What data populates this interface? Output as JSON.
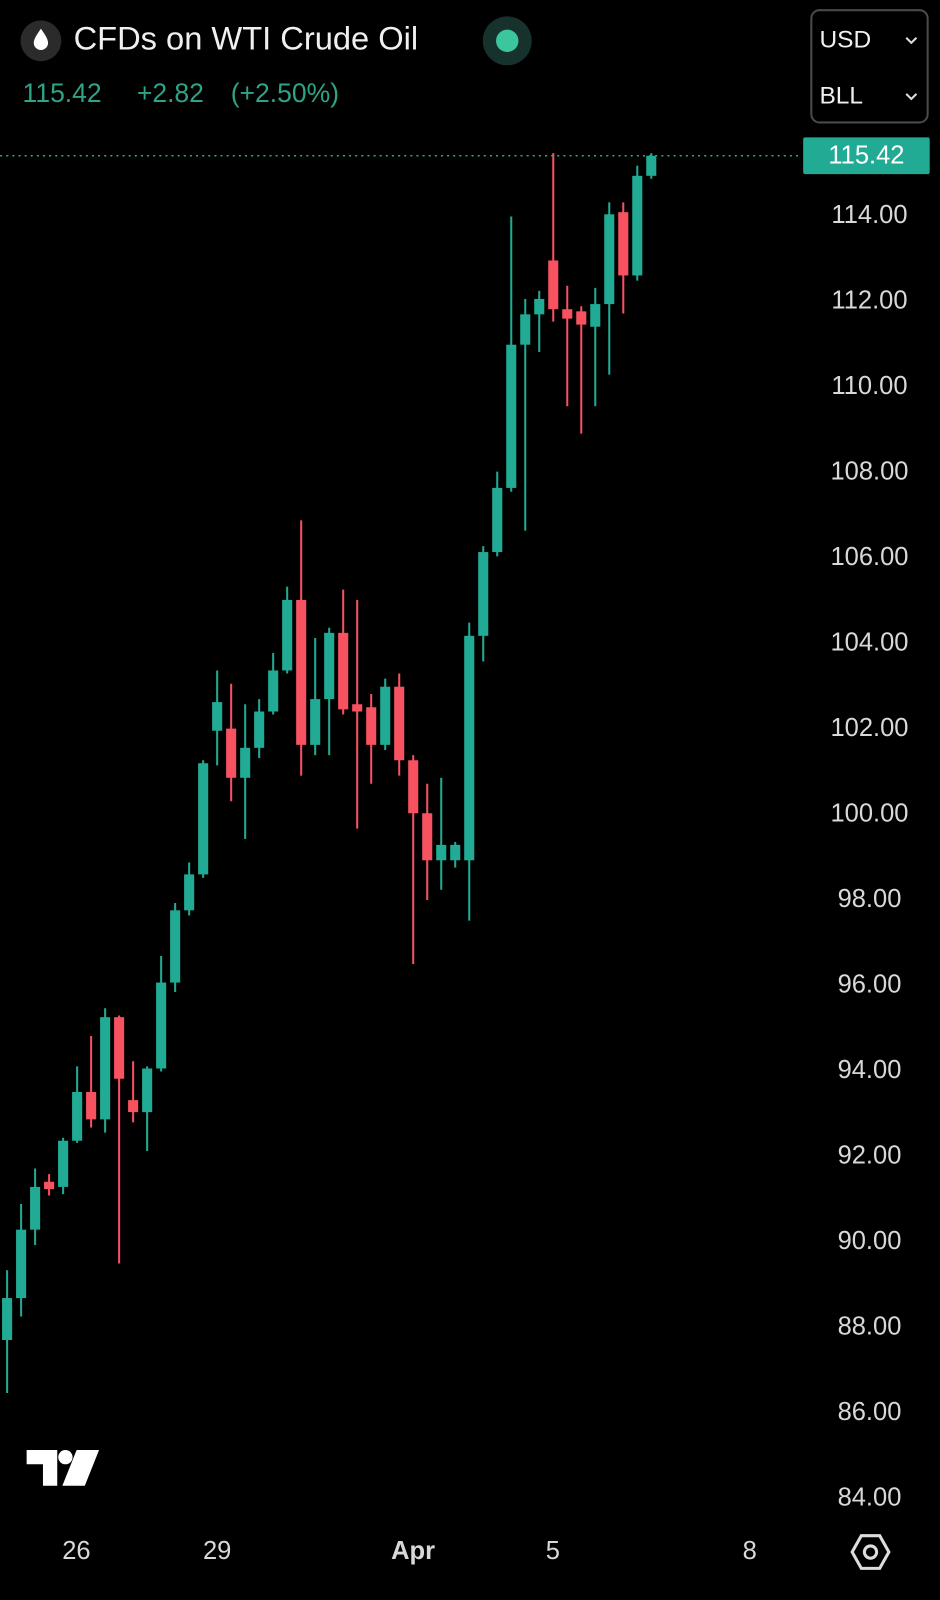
{
  "header": {
    "title": "CFDs on WTI Crude Oil",
    "change": "+2.82",
    "change_pct": "(+2.50%)",
    "currency": "USD",
    "unit": "BLL"
  },
  "chart_data": {
    "type": "candlestick",
    "open": [
      87.72,
      88.7,
      90.3,
      91.42,
      91.3,
      92.38,
      93.52,
      92.88,
      95.27,
      93.33,
      93.05,
      94.07,
      96.08,
      97.77,
      98.61,
      101.97,
      102.02,
      100.87,
      101.57,
      102.42,
      103.38,
      105.03,
      101.64,
      102.71,
      104.26,
      102.59,
      102.52,
      101.64,
      103.0,
      101.28,
      100.04,
      98.94,
      98.94,
      98.94,
      104.19,
      106.15,
      107.65,
      111.0,
      111.71,
      112.97,
      111.83,
      111.78,
      111.42,
      111.95,
      114.1,
      112.62,
      114.95
    ],
    "high": [
      89.35,
      90.9,
      91.73,
      91.6,
      92.45,
      94.12,
      94.83,
      95.48,
      95.31,
      94.24,
      94.12,
      96.7,
      97.94,
      98.89,
      101.28,
      103.38,
      103.07,
      102.59,
      102.71,
      103.79,
      105.34,
      106.89,
      104.14,
      104.38,
      105.27,
      105.03,
      102.83,
      103.19,
      103.31,
      101.4,
      100.73,
      100.87,
      99.37,
      104.5,
      106.29,
      108.03,
      114.0,
      112.07,
      112.26,
      115.48,
      112.38,
      111.9,
      112.33,
      114.33,
      114.33,
      115.19,
      115.48
    ],
    "low": [
      86.48,
      88.27,
      89.94,
      91.1,
      91.13,
      92.33,
      92.69,
      92.57,
      89.51,
      92.81,
      92.14,
      94.0,
      95.86,
      97.65,
      98.53,
      101.16,
      100.32,
      99.44,
      101.33,
      102.35,
      103.31,
      100.92,
      101.4,
      101.4,
      102.35,
      99.68,
      100.73,
      101.52,
      100.92,
      96.51,
      98.01,
      98.25,
      98.77,
      97.53,
      103.59,
      106.05,
      107.56,
      106.65,
      110.83,
      111.54,
      109.56,
      108.92,
      109.56,
      110.3,
      111.73,
      112.5,
      114.88
    ],
    "close": [
      88.7,
      90.3,
      91.3,
      91.25,
      92.38,
      93.52,
      92.88,
      95.27,
      93.83,
      93.05,
      94.07,
      96.08,
      97.77,
      98.61,
      101.21,
      102.64,
      100.87,
      101.57,
      102.42,
      103.38,
      105.03,
      101.64,
      102.71,
      104.26,
      102.47,
      102.42,
      101.64,
      103.0,
      101.28,
      100.04,
      98.94,
      99.3,
      99.3,
      104.19,
      106.15,
      107.65,
      111.0,
      111.71,
      112.07,
      111.83,
      111.61,
      111.47,
      111.95,
      114.05,
      112.62,
      114.95,
      115.42
    ],
    "up_color": "#22ab94",
    "down_color": "#f7525f",
    "last_price": 115.42,
    "xlim": [
      -0.5,
      56.7
    ],
    "xticks": [
      {
        "value": 4.95,
        "label": "26"
      },
      {
        "value": 15.0,
        "label": "29"
      },
      {
        "value": 28.99,
        "label": "Apr"
      },
      {
        "value": 38.97,
        "label": "5"
      },
      {
        "value": 53.03,
        "label": "8"
      }
    ],
    "ylim": [
      83.38,
      115.96
    ],
    "yticks": [
      {
        "value": 84,
        "label": "84.00"
      },
      {
        "value": 86,
        "label": "86.00"
      },
      {
        "value": 88,
        "label": "88.00"
      },
      {
        "value": 90,
        "label": "90.00"
      },
      {
        "value": 92,
        "label": "92.00"
      },
      {
        "value": 94,
        "label": "94.00"
      },
      {
        "value": 96,
        "label": "96.00"
      },
      {
        "value": 98,
        "label": "98.00"
      },
      {
        "value": 100,
        "label": "100.00"
      },
      {
        "value": 102,
        "label": "102.00"
      },
      {
        "value": 104,
        "label": "104.00"
      },
      {
        "value": 106,
        "label": "106.00"
      },
      {
        "value": 108,
        "label": "108.00"
      },
      {
        "value": 110,
        "label": "110.00"
      },
      {
        "value": 112,
        "label": "112.00"
      },
      {
        "value": 114,
        "label": "114.00"
      }
    ]
  }
}
